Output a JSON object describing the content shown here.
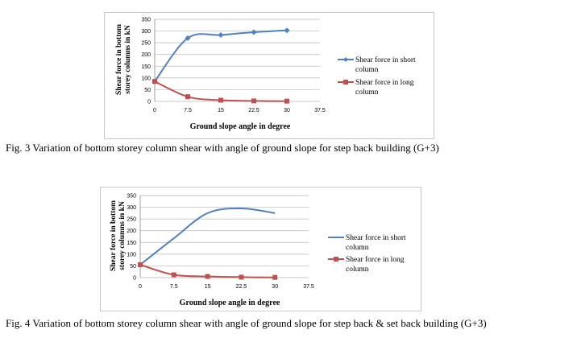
{
  "chart_data": [
    {
      "type": "line",
      "x": [
        0,
        7.5,
        15,
        22.5,
        30
      ],
      "x_ticks": [
        "0",
        "7.5",
        "15",
        "22.5",
        "30",
        "37.5"
      ],
      "y_ticks": [
        "0",
        "50",
        "100",
        "150",
        "200",
        "250",
        "300",
        "350"
      ],
      "ylim": [
        0,
        350
      ],
      "xlabel": "Ground slope angle in degree",
      "ylabel_lines": [
        "Shear force in bottom",
        "storey columns in kN"
      ],
      "grid": true,
      "legend_position": "right",
      "series": [
        {
          "name_lines": [
            "Shear force in short",
            "column"
          ],
          "color": "#4f81bd",
          "marker": "diamond",
          "values": [
            85,
            270,
            283,
            295,
            303
          ]
        },
        {
          "name_lines": [
            "Shear force in long",
            "column"
          ],
          "color": "#c0504d",
          "marker": "square",
          "values": [
            85,
            20,
            5,
            2,
            1
          ]
        }
      ],
      "caption": "Fig. 3 Variation of bottom storey column shear with angle of ground slope for step back building (G+3)"
    },
    {
      "type": "line",
      "x": [
        0,
        7.5,
        15,
        22.5,
        30
      ],
      "x_ticks": [
        "0",
        "7.5",
        "15",
        "22.5",
        "30",
        "37.5"
      ],
      "y_ticks": [
        "0",
        "50",
        "100",
        "150",
        "200",
        "250",
        "300",
        "350"
      ],
      "ylim": [
        0,
        350
      ],
      "xlabel": "Ground slope angle in degree",
      "ylabel_lines": [
        "Shear force in bottom",
        "storey columns in kN"
      ],
      "grid": true,
      "legend_position": "right",
      "series": [
        {
          "name_lines": [
            "Shear force in short",
            "column"
          ],
          "color": "#4f81bd",
          "marker": "none",
          "values": [
            55,
            168,
            275,
            295,
            275
          ]
        },
        {
          "name_lines": [
            "Shear force in long",
            "column"
          ],
          "color": "#c0504d",
          "marker": "square",
          "values": [
            55,
            12,
            5,
            2,
            1
          ]
        }
      ],
      "caption": "Fig. 4 Variation of bottom storey column shear with angle of ground slope for step back & set back building (G+3)"
    }
  ]
}
